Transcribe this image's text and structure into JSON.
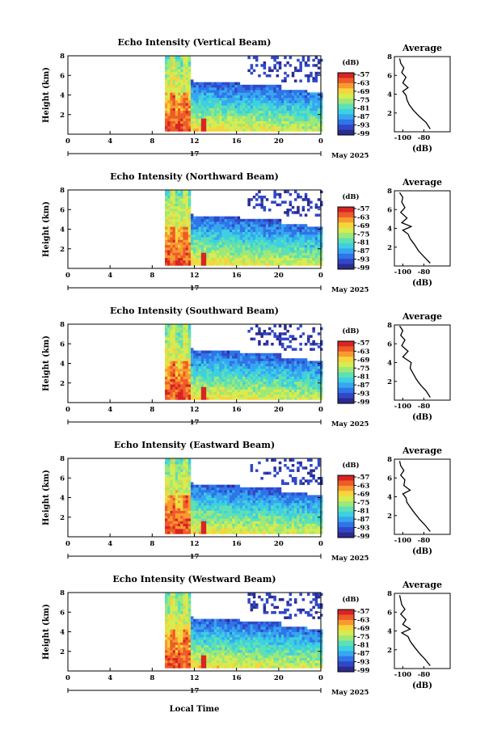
{
  "date_label": "May 2025",
  "day_label": "17",
  "xlabel_bottom": "Local Time",
  "main_xticks": [
    "0",
    "4",
    "8",
    "12",
    "16",
    "20",
    "0"
  ],
  "main_yticks": [
    "2",
    "4",
    "6",
    "8"
  ],
  "ylabel": "Height (km)",
  "colorbar": {
    "unit": "(dB)",
    "ticks": [
      "-57",
      "-63",
      "-69",
      "-75",
      "-81",
      "-87",
      "-93",
      "-99"
    ],
    "colors": [
      "#2b2b8f",
      "#3048c8",
      "#2f74e8",
      "#37a6f0",
      "#3cd0e0",
      "#5ee0b4",
      "#9ee878",
      "#d6ec50",
      "#f6d43c",
      "#f89a30",
      "#ee5a28",
      "#d82424"
    ]
  },
  "avg": {
    "title": "Average",
    "xlabel": "(dB)",
    "xticks": [
      "-100",
      "-80"
    ],
    "yticks": [
      "2",
      "4",
      "6",
      "8"
    ]
  },
  "colors": {
    "no_data": "#ffffff",
    "frame": "#000000"
  },
  "chart_data": [
    {
      "type": "heatmap",
      "title": "Echo Intensity (Vertical Beam)",
      "xlabel": "",
      "ylabel": "Height (km)",
      "x_range_hours": [
        0,
        24
      ],
      "y_range_km": [
        0,
        8
      ],
      "color_range_db": [
        -99,
        -57
      ],
      "average_profile": {
        "title": "Average",
        "xlabel": "(dB)",
        "x_db": [
          -74,
          -78,
          -84,
          -90,
          -94,
          -96,
          -97,
          -100,
          -95,
          -100,
          -97,
          -101,
          -99,
          -102,
          -103
        ],
        "y_km": [
          0.3,
          1.0,
          1.6,
          2.3,
          2.9,
          3.4,
          3.9,
          4.3,
          4.7,
          5.2,
          5.8,
          6.3,
          6.8,
          7.3,
          7.8
        ]
      }
    },
    {
      "type": "heatmap",
      "title": "Echo Intensity (Northward Beam)",
      "xlabel": "",
      "ylabel": "Height (km)",
      "x_range_hours": [
        0,
        24
      ],
      "y_range_km": [
        0,
        8
      ],
      "color_range_db": [
        -99,
        -57
      ],
      "average_profile": {
        "title": "Average",
        "xlabel": "(dB)",
        "x_db": [
          -74,
          -80,
          -85,
          -89,
          -93,
          -95,
          -100,
          -92,
          -101,
          -96,
          -102,
          -98,
          -101,
          -100,
          -103
        ],
        "y_km": [
          0.3,
          1.0,
          1.6,
          2.3,
          2.9,
          3.4,
          3.8,
          4.2,
          4.6,
          5.1,
          5.7,
          6.2,
          6.8,
          7.3,
          7.8
        ]
      }
    },
    {
      "type": "heatmap",
      "title": "Echo Intensity (Southward Beam)",
      "xlabel": "",
      "ylabel": "Height (km)",
      "x_range_hours": [
        0,
        24
      ],
      "y_range_km": [
        0,
        8
      ],
      "color_range_db": [
        -99,
        -57
      ],
      "average_profile": {
        "title": "Average",
        "xlabel": "(dB)",
        "x_db": [
          -74,
          -78,
          -83,
          -87,
          -90,
          -93,
          -92,
          -100,
          -95,
          -101,
          -98,
          -102,
          -100,
          -103
        ],
        "y_km": [
          0.3,
          1.0,
          1.6,
          2.2,
          2.8,
          3.4,
          4.0,
          4.6,
          5.2,
          5.8,
          6.4,
          6.9,
          7.4,
          7.9
        ]
      }
    },
    {
      "type": "heatmap",
      "title": "Echo Intensity (Eastward Beam)",
      "xlabel": "",
      "ylabel": "Height (km)",
      "x_range_hours": [
        0,
        24
      ],
      "y_range_km": [
        0,
        8
      ],
      "color_range_db": [
        -99,
        -57
      ],
      "average_profile": {
        "title": "Average",
        "xlabel": "(dB)",
        "x_db": [
          -74,
          -79,
          -84,
          -89,
          -93,
          -96,
          -97,
          -100,
          -93,
          -99,
          -98,
          -102,
          -99,
          -102,
          -103
        ],
        "y_km": [
          0.3,
          1.0,
          1.6,
          2.3,
          2.9,
          3.4,
          3.9,
          4.3,
          4.7,
          5.2,
          5.8,
          6.3,
          6.8,
          7.3,
          7.8
        ]
      }
    },
    {
      "type": "heatmap",
      "title": "Echo Intensity (Westward Beam)",
      "xlabel": "Local Time",
      "ylabel": "Height (km)",
      "x_range_hours": [
        0,
        24
      ],
      "y_range_km": [
        0,
        8
      ],
      "color_range_db": [
        -99,
        -57
      ],
      "average_profile": {
        "title": "Average",
        "xlabel": "(dB)",
        "x_db": [
          -74,
          -79,
          -84,
          -89,
          -93,
          -95,
          -101,
          -93,
          -100,
          -97,
          -102,
          -98,
          -101,
          -102,
          -103
        ],
        "y_km": [
          0.3,
          1.0,
          1.6,
          2.3,
          2.9,
          3.4,
          3.8,
          4.2,
          4.7,
          5.2,
          5.8,
          6.3,
          6.8,
          7.3,
          7.8
        ]
      }
    }
  ]
}
